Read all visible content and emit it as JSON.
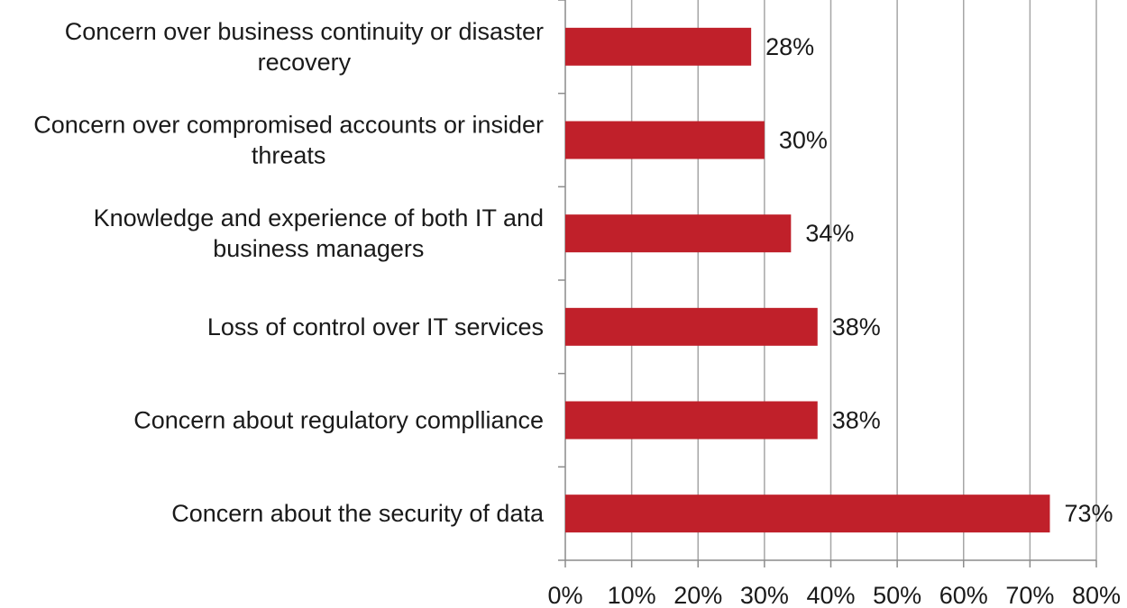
{
  "chart_data": {
    "type": "bar",
    "orientation": "horizontal",
    "title": "",
    "xlabel": "",
    "ylabel": "",
    "categories": [
      [
        "Concern over business continuity or disaster",
        "recovery"
      ],
      [
        "Concern over compromised accounts or insider",
        "threats"
      ],
      [
        "Knowledge and experience of both IT and",
        "business managers"
      ],
      [
        "Loss of control over IT services"
      ],
      [
        "Concern about regulatory complliance"
      ],
      [
        "Concern about the security of data"
      ]
    ],
    "values": [
      28,
      30,
      34,
      38,
      38,
      73
    ],
    "data_labels": [
      "28%",
      "30%",
      "34%",
      "38%",
      "38%",
      "73%"
    ],
    "xlim": [
      0,
      80
    ],
    "ticks": [
      0,
      10,
      20,
      30,
      40,
      50,
      60,
      70,
      80
    ],
    "tick_labels": [
      "0%",
      "10%",
      "20%",
      "30%",
      "40%",
      "50%",
      "60%",
      "70%",
      "80%"
    ],
    "bar_color": "#c0202a",
    "grid": true,
    "legend": "none"
  }
}
